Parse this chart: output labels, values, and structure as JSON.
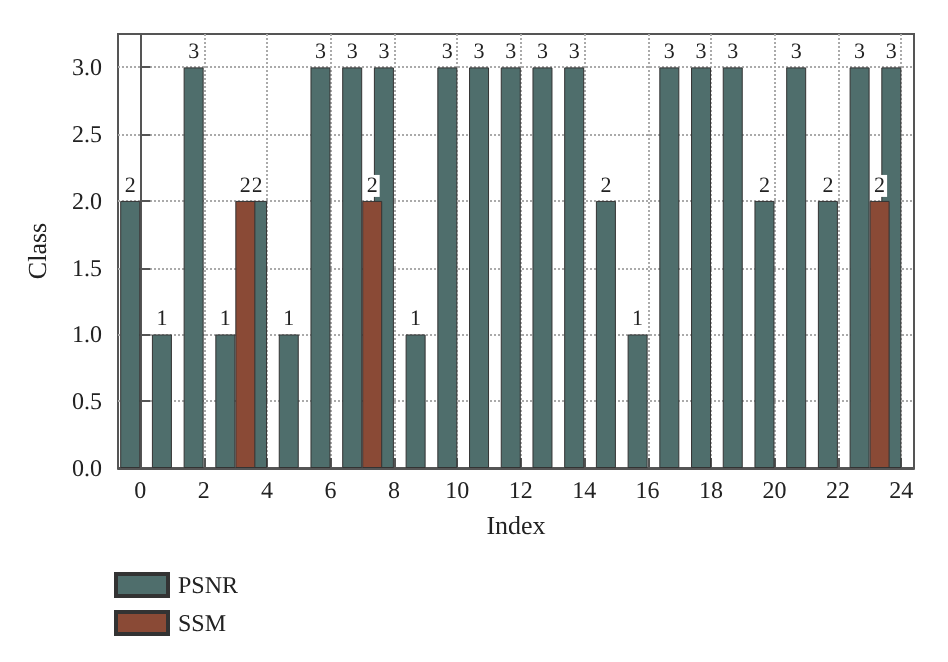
{
  "chart_data": {
    "type": "bar",
    "xlabel": "Index",
    "ylabel": "Class",
    "x": [
      0,
      1,
      2,
      3,
      4,
      5,
      6,
      7,
      8,
      9,
      10,
      11,
      12,
      13,
      14,
      15,
      16,
      17,
      18,
      19,
      20,
      21,
      22,
      23,
      24
    ],
    "series": [
      {
        "name": "PSNR",
        "color": "#4f6e6c",
        "values": [
          2,
          1,
          3,
          1,
          2,
          1,
          3,
          3,
          3,
          1,
          3,
          3,
          3,
          3,
          3,
          2,
          1,
          3,
          3,
          3,
          2,
          3,
          2,
          3,
          3
        ]
      },
      {
        "name": "SSM",
        "color": "#8a4a36",
        "values": [
          null,
          null,
          null,
          2,
          null,
          null,
          null,
          2,
          null,
          null,
          null,
          null,
          null,
          null,
          null,
          null,
          null,
          null,
          null,
          null,
          null,
          null,
          null,
          2,
          null
        ]
      }
    ],
    "xlim": [
      -0.7,
      24.4
    ],
    "xticks": [
      0,
      2,
      4,
      6,
      8,
      10,
      12,
      14,
      16,
      18,
      20,
      22,
      24
    ],
    "ylim": [
      0,
      3.25
    ],
    "yticks": [
      {
        "value": 0,
        "label": "0.0"
      },
      {
        "value": 0.5,
        "label": "0.5"
      },
      {
        "value": 1,
        "label": "1.0"
      },
      {
        "value": 1.5,
        "label": "1.5"
      },
      {
        "value": 2,
        "label": "2.0"
      },
      {
        "value": 2.5,
        "label": "2.5"
      },
      {
        "value": 3,
        "label": "3.0"
      }
    ],
    "data_labels": true,
    "grid": true,
    "legend": "bottom left"
  }
}
